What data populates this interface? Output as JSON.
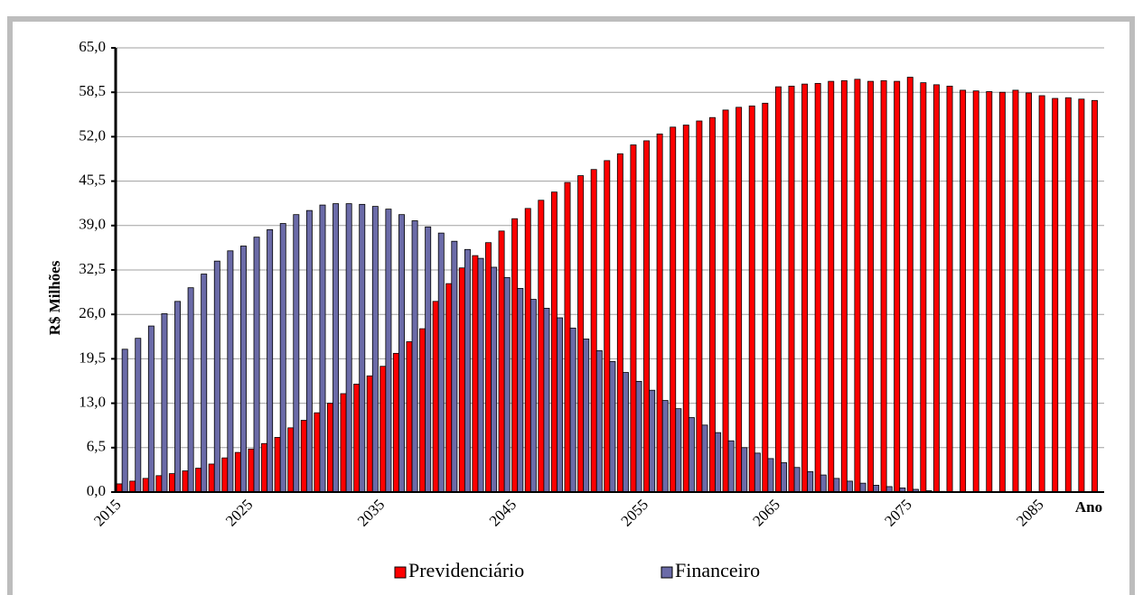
{
  "chart_data": {
    "type": "bar",
    "y_label": "R$ Milhões",
    "x_label": "Ano",
    "categories": [
      "2015",
      null,
      null,
      null,
      null,
      null,
      null,
      null,
      null,
      null,
      "2025",
      null,
      null,
      null,
      null,
      null,
      null,
      null,
      null,
      null,
      "2035",
      null,
      null,
      null,
      null,
      null,
      null,
      null,
      null,
      null,
      "2045",
      null,
      null,
      null,
      null,
      null,
      null,
      null,
      null,
      null,
      "2055",
      null,
      null,
      null,
      null,
      null,
      null,
      null,
      null,
      null,
      "2065",
      null,
      null,
      null,
      null,
      null,
      null,
      null,
      null,
      null,
      "2075",
      null,
      null,
      null,
      null,
      null,
      null,
      null,
      null,
      null,
      "2085",
      null,
      null,
      null,
      null
    ],
    "series": [
      {
        "name": "Previdenciário",
        "color": "#ff0000",
        "values": [
          1.2,
          1.6,
          2.0,
          2.4,
          2.7,
          3.1,
          3.5,
          4.1,
          5.0,
          5.8,
          6.3,
          7.1,
          8.0,
          9.4,
          10.5,
          11.6,
          13.0,
          14.4,
          15.8,
          17.0,
          18.4,
          20.3,
          22.0,
          23.9,
          27.9,
          30.5,
          32.8,
          34.6,
          36.5,
          38.2,
          40.0,
          41.5,
          42.7,
          43.9,
          45.3,
          46.3,
          47.2,
          48.5,
          49.5,
          50.8,
          51.4,
          52.4,
          53.4,
          53.7,
          54.3,
          54.8,
          55.9,
          56.3,
          56.5,
          56.9,
          59.3,
          59.4,
          59.7,
          59.8,
          60.1,
          60.2,
          60.4,
          60.1,
          60.2,
          60.1,
          60.7,
          59.9,
          59.6,
          59.4,
          58.8,
          58.7,
          58.6,
          58.5,
          58.8,
          58.4,
          58.0,
          57.6,
          57.7,
          57.5,
          57.3
        ]
      },
      {
        "name": "Financeiro",
        "color": "#6b6ba8",
        "values": [
          20.9,
          22.5,
          24.3,
          26.1,
          27.9,
          29.9,
          31.9,
          33.8,
          35.3,
          36.0,
          37.3,
          38.4,
          39.3,
          40.6,
          41.2,
          42.0,
          42.2,
          42.2,
          42.1,
          41.8,
          41.4,
          40.6,
          39.7,
          38.8,
          37.9,
          36.7,
          35.5,
          34.2,
          32.9,
          31.4,
          29.8,
          28.2,
          26.9,
          25.5,
          24.0,
          22.4,
          20.7,
          19.1,
          17.5,
          16.2,
          14.9,
          13.4,
          12.2,
          10.9,
          9.8,
          8.7,
          7.5,
          6.5,
          5.7,
          4.9,
          4.3,
          3.6,
          3.0,
          2.5,
          2.0,
          1.6,
          1.3,
          1.0,
          0.8,
          0.6,
          0.4,
          0.2,
          0.1,
          0,
          0,
          0,
          0,
          0,
          0,
          0,
          0,
          0,
          0,
          0,
          0
        ]
      }
    ],
    "ylim": [
      0,
      65
    ],
    "yticks": [
      {
        "value": 0,
        "label": "0,0"
      },
      {
        "value": 6.5,
        "label": "6,5"
      },
      {
        "value": 13,
        "label": "13,0"
      },
      {
        "value": 19.5,
        "label": "19,5"
      },
      {
        "value": 26,
        "label": "26,0"
      },
      {
        "value": 32.5,
        "label": "32,5"
      },
      {
        "value": 39,
        "label": "39,0"
      },
      {
        "value": 45.5,
        "label": "45,5"
      },
      {
        "value": 52,
        "label": "52,0"
      },
      {
        "value": 58.5,
        "label": "58,5"
      },
      {
        "value": 65,
        "label": "65,0"
      }
    ],
    "grid": true,
    "legend": "bottom"
  }
}
